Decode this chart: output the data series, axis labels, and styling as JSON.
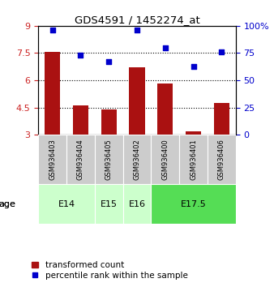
{
  "title": "GDS4591 / 1452274_at",
  "samples": [
    "GSM936403",
    "GSM936404",
    "GSM936405",
    "GSM936402",
    "GSM936400",
    "GSM936401",
    "GSM936406"
  ],
  "bar_values": [
    7.55,
    4.6,
    4.4,
    6.7,
    5.82,
    3.2,
    4.75
  ],
  "scatter_values": [
    96,
    73,
    67,
    96,
    80,
    63,
    76
  ],
  "bar_color": "#aa1111",
  "scatter_color": "#0000cc",
  "left_ylim": [
    3,
    9
  ],
  "right_ylim": [
    0,
    100
  ],
  "left_yticks": [
    3,
    4.5,
    6,
    7.5,
    9
  ],
  "left_yticklabels": [
    "3",
    "4.5",
    "6",
    "7.5",
    "9"
  ],
  "right_yticks": [
    0,
    25,
    50,
    75,
    100
  ],
  "right_yticklabels": [
    "0",
    "25",
    "50",
    "75",
    "100%"
  ],
  "hlines": [
    4.5,
    6.0,
    7.5
  ],
  "age_groups": [
    {
      "label": "E14",
      "samples": [
        "GSM936403",
        "GSM936404"
      ],
      "color": "#ccffcc",
      "text_color": "#000000"
    },
    {
      "label": "E15",
      "samples": [
        "GSM936405"
      ],
      "color": "#ccffcc",
      "text_color": "#000000"
    },
    {
      "label": "E16",
      "samples": [
        "GSM936402"
      ],
      "color": "#ccffcc",
      "text_color": "#000000"
    },
    {
      "label": "E17.5",
      "samples": [
        "GSM936400",
        "GSM936401",
        "GSM936406"
      ],
      "color": "#55dd55",
      "text_color": "#000000"
    }
  ],
  "legend_bar_label": "transformed count",
  "legend_scatter_label": "percentile rank within the sample",
  "age_label": "age",
  "background_color": "#ffffff",
  "plot_bg_color": "#ffffff",
  "tick_label_color_left": "#cc2222",
  "tick_label_color_right": "#0000cc",
  "sample_bg_color": "#cccccc"
}
